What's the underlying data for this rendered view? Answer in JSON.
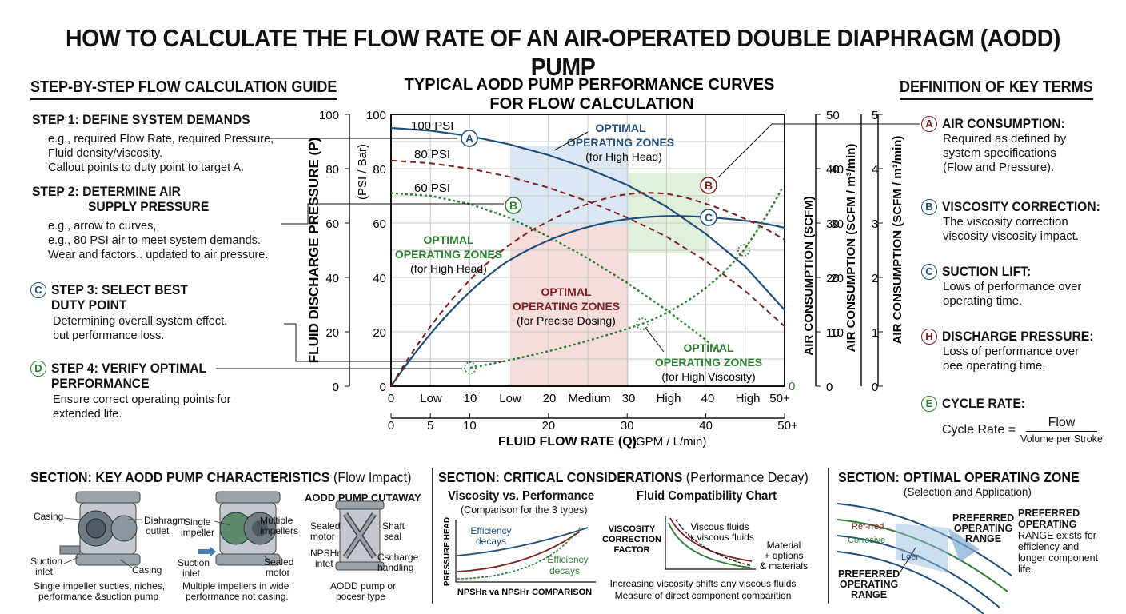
{
  "title": "HOW TO CALCULATE THE FLOW RATE OF AN AIR-OPERATED DOUBLE DIAPHRAGM (AODD) PUMP",
  "left": {
    "heading": "STEP-BY-STEP FLOW CALCULATION GUIDE",
    "steps": [
      {
        "title": "STEP 1: DEFINE SYSTEM DEMANDS",
        "lines": [
          "e.g., required Flow Rate, required Pressure,",
          "Fluid density/viscosity.",
          "Callout points to duty point to  target A."
        ]
      },
      {
        "title": "STEP 2: DETERMINE AIR",
        "title2": "SUPPLY PRESSURE",
        "lines": [
          "e.g., arrow to curves,",
          "e.g., 80 PSI air to meet system demands.",
          "Wear and factors.. updated to air pressure."
        ]
      },
      {
        "badge": "C",
        "title": "STEP 3: SELECT BEST",
        "title2": "DUTY POINT",
        "lines": [
          "Determining overall system effect.",
          "but performance loss."
        ]
      },
      {
        "badge": "D",
        "title": "STEP 4: VERIFY OPTIMAL",
        "title2": "PERFORMANCE",
        "lines": [
          "Ensure correct operating points for",
          "extended life."
        ]
      }
    ]
  },
  "chart": {
    "title_line1": "TYPICAL AODD PUMP PERFORMANCE CURVES",
    "title_line2": "FOR FLOW CALCULATION",
    "ylabel": "FLUID DISCHARGE PRESSURE (P)",
    "ylabel_unit": "(PSI / Bar)",
    "xlabel": "FLUID FLOW RATE (Q)",
    "xlabel_unit": "(GPM / L/min)",
    "y_ticks_outer": [
      "100",
      "80",
      "60",
      "40",
      "20",
      "0"
    ],
    "y_ticks_inner": [
      "100",
      "80",
      "60",
      "40",
      "20",
      "0"
    ],
    "x_ticks_top": [
      "0",
      "Low",
      "10",
      "Low",
      "20",
      "Medium",
      "30",
      "High",
      "40",
      "High",
      "50+"
    ],
    "x_ticks_bottom": [
      "0",
      "5",
      "10",
      "20",
      "30",
      "40",
      "50+"
    ],
    "right_axis1_label": "AIR CONSUMPTION (SCFM)",
    "right_axis1_ticks": [
      "50",
      "40",
      "30",
      "20",
      "10",
      "0"
    ],
    "right_axis2_label": "AIR CONSUMPTION (SCFM / m³/min)",
    "right_axis2_ticks": [
      "40",
      "30",
      "20",
      "10"
    ],
    "right_axis3_label": "AIR CONSUMPTION (SCFM / m³/min)",
    "right_axis3_ticks": [
      "5",
      "4",
      "3",
      "2",
      "1",
      "0"
    ],
    "end_zero": "0",
    "curve_labels": [
      "100 PSI",
      "80 PSI",
      "60 PSI"
    ],
    "zones": [
      {
        "title": "OPTIMAL",
        "title2": "OPERATING ZONES",
        "sub": "(for High Head)",
        "color": "#1f4e79"
      },
      {
        "title": "OPTIMAL",
        "title2": "OPERATING ZONES",
        "sub": "(for High Head)",
        "color": "#2e7d32"
      },
      {
        "title": "OPTIMAL",
        "title2": "OPERATING ZONES",
        "sub": "(for Precise Dosing)",
        "color": "#7b1f1f"
      },
      {
        "title": "OPTIMAL",
        "title2": "OPERATING ZONES",
        "sub": "(for High Viscosity)",
        "color": "#2e7d32"
      }
    ],
    "markers": [
      "A",
      "B",
      "B",
      "C"
    ],
    "colors": {
      "blue": "#1f4e79",
      "red": "#7b1f1f",
      "green": "#2e7d32"
    }
  },
  "chart_data": {
    "type": "line",
    "title": "TYPICAL AODD PUMP PERFORMANCE CURVES FOR FLOW CALCULATION",
    "xlabel": "FLUID FLOW RATE (Q) (GPM / L/min)",
    "ylabel": "FLUID DISCHARGE PRESSURE (P) (PSI / Bar)",
    "xlim": [
      0,
      50
    ],
    "ylim": [
      0,
      100
    ],
    "grid": true,
    "series": [
      {
        "name": "100 PSI",
        "x": [
          0,
          5,
          10,
          15,
          20,
          25,
          30,
          35,
          40,
          45,
          50
        ],
        "y": [
          95,
          94,
          92,
          89,
          85,
          80,
          74,
          66,
          56,
          44,
          28
        ]
      },
      {
        "name": "80 PSI",
        "x": [
          0,
          5,
          10,
          15,
          20,
          25,
          30,
          35,
          40,
          45,
          50
        ],
        "y": [
          83,
          82,
          80,
          77,
          73,
          68,
          62,
          55,
          46,
          35,
          22
        ]
      },
      {
        "name": "60 PSI",
        "x": [
          0,
          5,
          10,
          15,
          20,
          25,
          30,
          35,
          40,
          42
        ],
        "y": [
          71,
          70,
          67,
          62,
          55,
          47,
          38,
          28,
          17,
          12
        ]
      }
    ]
  },
  "right": {
    "heading": "DEFINITION OF KEY TERMS",
    "terms": [
      {
        "badge": "A",
        "color": "#7b1f1f",
        "title": "AIR CONSUMPTION:",
        "lines": [
          "Required as defined by",
          "system specifications",
          "(Flow and Pressure)."
        ]
      },
      {
        "badge": "B",
        "color": "#1f4e79",
        "title": "VISCOSITY CORRECTION:",
        "lines": [
          "The viscosity correction",
          "viscosity viscosity impact."
        ]
      },
      {
        "badge": "C",
        "color": "#1f4e79",
        "title": "SUCTION LIFT:",
        "lines": [
          "Lows of performance over",
          "operating time."
        ]
      },
      {
        "badge": "H",
        "color": "#7b1f1f",
        "title": "DISCHARGE PRESSURE:",
        "lines": [
          "Loss of performance over",
          "oee operating time."
        ]
      },
      {
        "badge": "E",
        "color": "#2e7d32",
        "title": "CYCLE RATE:",
        "lines": []
      }
    ],
    "formula": {
      "lhs": "Cycle Rate =",
      "num": "Flow",
      "den": "Volume per Stroke"
    }
  },
  "bottom": {
    "s1": {
      "heading": "SECTION: KEY AODD PUMP CHARACTERISTICS",
      "heading_note": "(Flow Impact)",
      "cutaway_title": "AODD PUMP CUTAWAY",
      "labels": [
        "Casing",
        "Diahragm",
        "outlet",
        "Suction",
        "inlet",
        "Casing",
        "Single",
        "impeller",
        "Multiple",
        "impellers",
        "Suction",
        "inlet",
        "Sealed",
        "motor",
        "Sealed",
        "motor",
        "NPSHr",
        "intet",
        "Shaft",
        "seal",
        "Cscharge",
        "handling"
      ],
      "captions": [
        "Single impeller sucties, niches,",
        "performance &suction pump",
        "Multiple impellers in wide",
        "performance not casing.",
        "AODD pump or",
        "pocesr type"
      ]
    },
    "s2": {
      "heading": "SECTION: CRITICAL CONSIDERATIONS",
      "heading_note": "(Performance Decay)",
      "sub1": "Viscosity vs. Performance",
      "sub1_note": "(Comparison for the 3 types)",
      "sub1_y": "PRESSURE HEAD",
      "sub1_labels": [
        "Efficiency",
        "decays",
        "Efficiency",
        "decays"
      ],
      "sub1_x": "NPSHʀ va NPSHr COMPARISON",
      "sub2": "Fluid Compatibility Chart",
      "sub2_y": [
        "VISCOSITY",
        "CORRECTION",
        "FACTOR"
      ],
      "sub2_labels": [
        "Viscous fluids",
        "+ viscous fluids",
        "Material",
        "+ options",
        "& materials"
      ],
      "sub2_caption": [
        "Increasing viscosity shifts any viscous fluids",
        "Measure of direct component comparition"
      ]
    },
    "s3": {
      "heading": "SECTION: OPTIMAL OPERATING ZONE",
      "heading_note": "(Selection and Application)",
      "band_labels": [
        "Ref-rred",
        "Corrosive",
        "Loer"
      ],
      "pref1": [
        "PREFERRED",
        "OPERATING",
        "RANGE"
      ],
      "pref2": [
        "PREFERRED",
        "OPERATING",
        "RANGE"
      ],
      "pref3": [
        "PREFERRED",
        "OPERATING",
        "RANGE exists for",
        "efficiency and",
        "longer component",
        "life."
      ]
    }
  }
}
